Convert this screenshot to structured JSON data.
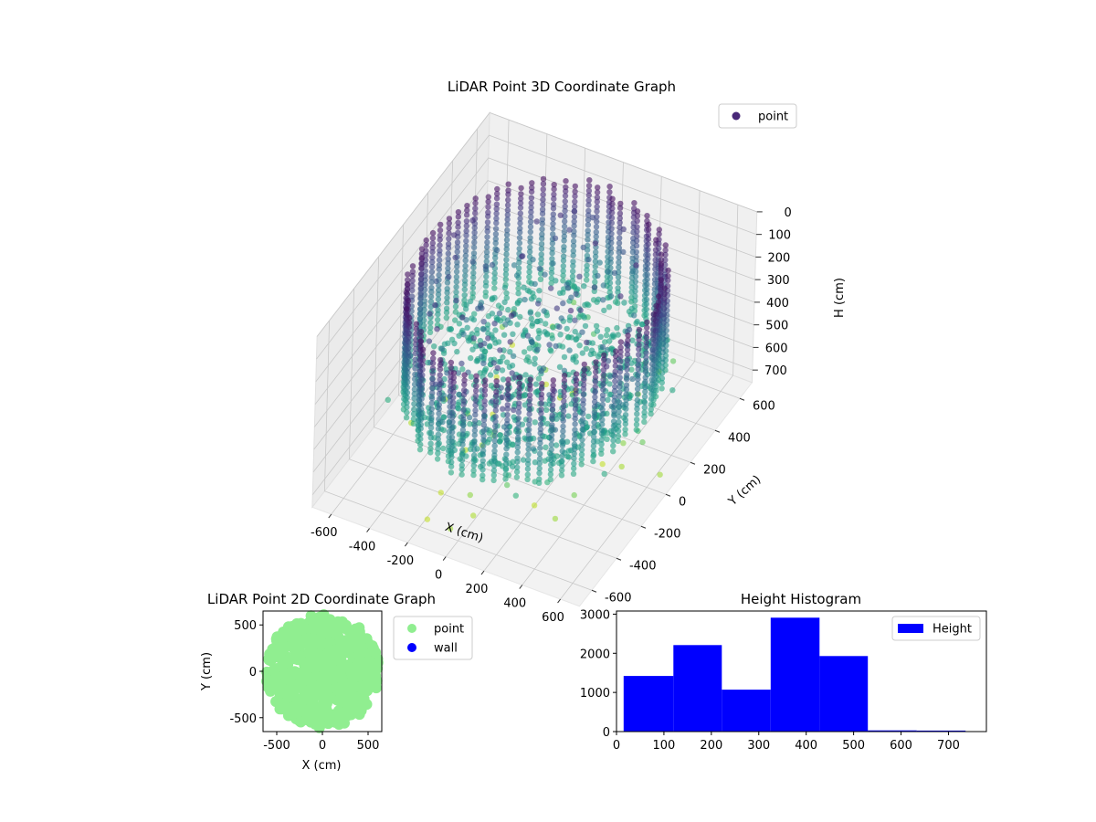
{
  "chart_data": [
    {
      "type": "scatter",
      "projection": "3d",
      "title": "LiDAR Point 3D Coordinate Graph",
      "xlabel": "X (cm)",
      "ylabel": "Y (cm)",
      "zlabel": "H (cm)",
      "xlim": [
        -700,
        700
      ],
      "ylim": [
        -700,
        700
      ],
      "zlim": [
        0,
        750
      ],
      "z_inverted": true,
      "xticks": [
        -600,
        -400,
        -200,
        0,
        200,
        400,
        600
      ],
      "yticks": [
        -600,
        -400,
        -200,
        0,
        200,
        400,
        600
      ],
      "zticks": [
        0,
        100,
        200,
        300,
        400,
        500,
        600,
        700
      ],
      "colormap": "viridis",
      "legend": {
        "position": "top-right",
        "entries": [
          {
            "label": "point",
            "color": "#482878"
          }
        ]
      },
      "grid": true,
      "structure": {
        "ring_radius_cm": 580,
        "ring_height_range_cm": [
          30,
          480
        ],
        "floor_level_cm": 450,
        "description_free_points_height_range_cm": [
          450,
          730
        ]
      }
    },
    {
      "type": "scatter",
      "title": "LiDAR Point 2D Coordinate Graph",
      "xlabel": "X (cm)",
      "ylabel": "Y (cm)",
      "xlim": [
        -650,
        650
      ],
      "ylim": [
        -650,
        650
      ],
      "xticks": [
        -500,
        0,
        500
      ],
      "yticks": [
        -500,
        0,
        500
      ],
      "series": [
        {
          "name": "point",
          "color": "#90ee90"
        },
        {
          "name": "wall",
          "color": "#0000ff"
        }
      ],
      "legend": {
        "position": "outside-right"
      },
      "grid": false
    },
    {
      "type": "bar",
      "subtype": "histogram",
      "title": "Height Histogram",
      "xlim": [
        0,
        780
      ],
      "ylim": [
        0,
        3080
      ],
      "xticks": [
        0,
        100,
        200,
        300,
        400,
        500,
        600,
        700
      ],
      "yticks": [
        0,
        1000,
        2000,
        3000
      ],
      "bin_edges": [
        15,
        120,
        222,
        325,
        428,
        530,
        633,
        736
      ],
      "values": [
        1420,
        2210,
        1070,
        2910,
        1930,
        30,
        25
      ],
      "series": [
        {
          "name": "Height",
          "color": "#0000ff"
        }
      ],
      "legend": {
        "position": "top-right"
      },
      "grid": false
    }
  ]
}
